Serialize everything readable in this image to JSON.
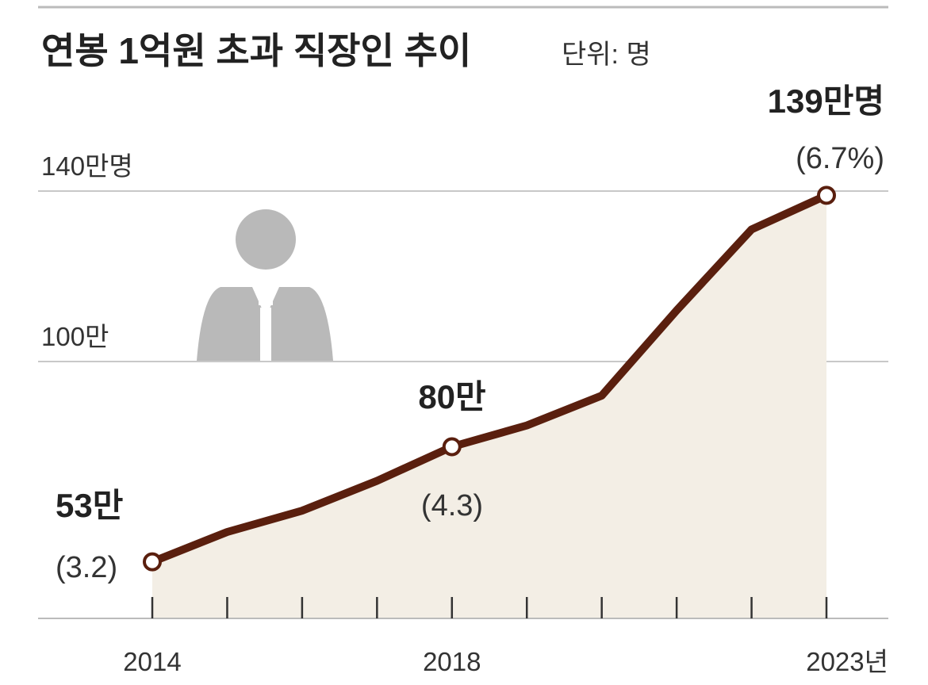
{
  "header": {
    "title": "연봉 1억원 초과 직장인 추이",
    "unit": "단위: 명"
  },
  "colors": {
    "line": "#5a1f0e",
    "area": "#f3eee5",
    "grid": "#c8c8c8",
    "icon": "#b9b9b9",
    "marker_fill": "#ffffff"
  },
  "icon": {
    "name": "person-icon"
  },
  "chart_data": {
    "type": "area",
    "x": [
      2014,
      2015,
      2016,
      2017,
      2018,
      2019,
      2020,
      2021,
      2022,
      2023
    ],
    "series": [
      {
        "values": [
          53,
          60,
          65,
          72,
          80,
          85,
          92,
          112,
          131,
          139
        ]
      }
    ],
    "ylim": [
      40,
      150
    ],
    "y_ticks": [
      {
        "value": 100,
        "label": "100만"
      },
      {
        "value": 140,
        "label": "140만명"
      }
    ],
    "x_ticks": [
      {
        "value": 2014,
        "label": "2014"
      },
      {
        "value": 2018,
        "label": "2018"
      },
      {
        "value": 2023,
        "label": "2023년"
      }
    ],
    "annotations": [
      {
        "x": 2014,
        "value_label": "53만",
        "pct_label": "(3.2)"
      },
      {
        "x": 2018,
        "value_label": "80만",
        "pct_label": "(4.3)"
      },
      {
        "x": 2023,
        "value_label": "139만명",
        "pct_label": "(6.7%)"
      }
    ],
    "grid": true
  }
}
